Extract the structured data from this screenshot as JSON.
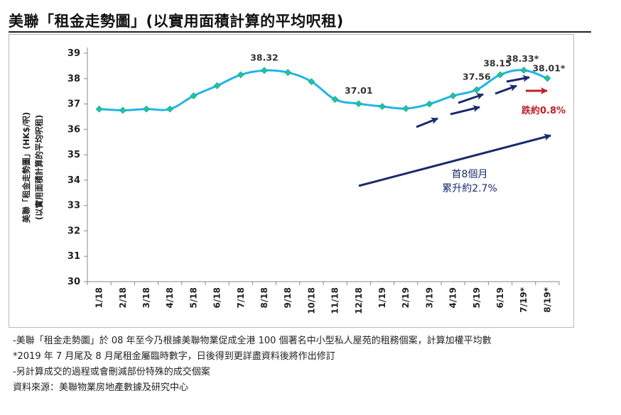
{
  "title": "美聯「租金走勢圖」(以實用面積計算的平均呎租)",
  "chart_data": {
    "type": "line",
    "categories": [
      "1/18",
      "2/18",
      "3/18",
      "4/18",
      "5/18",
      "6/18",
      "7/18",
      "8/18",
      "9/18",
      "10/18",
      "11/18",
      "12/18",
      "1/19",
      "2/19",
      "3/19",
      "4/19",
      "5/19",
      "6/19",
      "7/19*",
      "8/19*"
    ],
    "series": [
      {
        "values": [
          36.8,
          36.75,
          36.8,
          36.8,
          37.32,
          37.72,
          38.15,
          38.32,
          38.24,
          37.88,
          37.18,
          37.01,
          36.9,
          36.82,
          37.0,
          37.32,
          37.56,
          38.15,
          38.33,
          38.01
        ],
        "color": "#1fb5e8",
        "marker_color": "#20c3a0"
      }
    ],
    "point_labels": [
      {
        "index": 7,
        "text": "38.32"
      },
      {
        "index": 11,
        "text": "37.01"
      },
      {
        "index": 16,
        "text": "37.56"
      },
      {
        "index": 17,
        "text": "38.15"
      },
      {
        "index": 18,
        "text": "38.33*"
      },
      {
        "index": 19,
        "text": "38.01*"
      }
    ],
    "ylabel_line1": "美聯「租金走勢圖」(HK$/呎)",
    "ylabel_line2": "(以實用面積計算的平均呎租)",
    "ylim": [
      30,
      39
    ],
    "yticks": [
      30,
      31,
      32,
      33,
      34,
      35,
      36,
      37,
      38,
      39
    ],
    "grid": false,
    "annotations": {
      "rise_line1": "首8個月",
      "rise_line2": "累升約2.7%",
      "drop": "跌約0.8%",
      "arrow_color": "#1a2a6c",
      "drop_color": "#c0202a"
    }
  },
  "notes": [
    "-美聯「租金走勢圖」於 08 年至今乃根據美聯物業促成全港 100 個著名中小型私人屋苑的租務個案，計算加權平均數",
    "*2019 年 7 月尾及 8 月尾租金屬臨時數字，日後得到更詳盡資料後將作出修訂",
    "-另計算成交的過程或會刪減部份特殊的成交個案",
    "資料來源：美聯物業房地產數據及研究中心"
  ]
}
